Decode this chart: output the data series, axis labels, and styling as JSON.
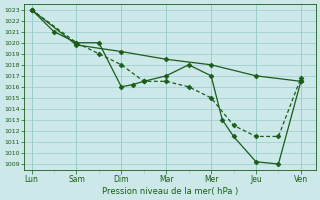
{
  "title": "Pression niveau de la mer( hPa )",
  "background_color": "#cce8e8",
  "grid_color": "#99cccc",
  "line_color": "#1a5c1a",
  "xlabels": [
    "Lun",
    "Sam",
    "Dim",
    "Mar",
    "Mer",
    "Jeu",
    "Ven"
  ],
  "xtick_positions": [
    0,
    24,
    48,
    72,
    96,
    120,
    144
  ],
  "ylim": [
    1008.5,
    1023.5
  ],
  "yticks": [
    1009,
    1010,
    1011,
    1012,
    1013,
    1014,
    1015,
    1016,
    1017,
    1018,
    1019,
    1020,
    1021,
    1022,
    1023
  ],
  "series1_x": [
    0,
    12,
    24,
    36,
    48,
    54,
    60,
    72,
    84,
    96,
    102,
    108,
    120,
    132,
    144
  ],
  "series1_y": [
    1023,
    1021,
    1020,
    1020,
    1016,
    1016.2,
    1016.5,
    1017,
    1018,
    1017,
    1013,
    1011.5,
    1009.2,
    1009,
    1016.5
  ],
  "series2_x": [
    0,
    24,
    36,
    48,
    60,
    72,
    84,
    96,
    108,
    120,
    132,
    144
  ],
  "series2_y": [
    1023,
    1020,
    1019,
    1018,
    1016.5,
    1016.5,
    1016,
    1015,
    1012.5,
    1011.5,
    1011.5,
    1016.8
  ],
  "series3_x": [
    0,
    24,
    48,
    72,
    96,
    120,
    144
  ],
  "series3_y": [
    1023,
    1019.8,
    1019.2,
    1018.5,
    1018.0,
    1017.0,
    1016.5
  ]
}
